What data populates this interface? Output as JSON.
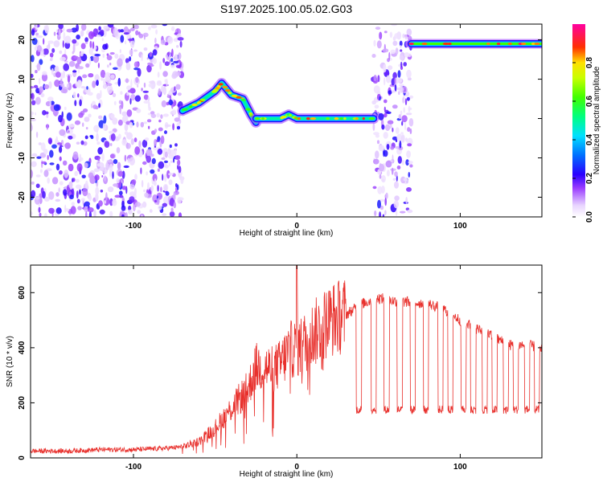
{
  "title": "S197.2025.100.05.02.G03",
  "colors": {
    "snr_line": "#e8302c",
    "frame": "#000000",
    "background": "#ffffff"
  },
  "chart_data": [
    {
      "type": "heatmap",
      "title": "S197.2025.100.05.02.G03",
      "xlabel": "Height of straight line (km)",
      "ylabel": "Frequency (Hz)",
      "xlim": [
        -163,
        150
      ],
      "ylim": [
        -25,
        24
      ],
      "x_ticks": [
        -100,
        0,
        100
      ],
      "x_tick_labels": [
        "-100",
        "0",
        "100"
      ],
      "y_ticks": [
        -20,
        -10,
        0,
        10,
        20
      ],
      "y_tick_labels": [
        "-20",
        "-10",
        "0",
        "10",
        "20"
      ],
      "colorbar": {
        "label": "Normalized spectral amplitude",
        "range": [
          0.0,
          1.0
        ],
        "ticks": [
          0.0,
          0.2,
          0.4,
          0.6,
          0.8
        ],
        "tick_labels": [
          "0.0",
          "0.2",
          "0.4",
          "0.6",
          "0.8"
        ],
        "colormap": "rainbow (white-violet-blue-cyan-green-yellow-red-magenta)"
      },
      "regions": [
        {
          "x": [
            -163,
            -70
          ],
          "description": "scattered low-amplitude noise",
          "y_range": [
            -25,
            24
          ]
        },
        {
          "x": [
            -70,
            -25
          ],
          "description": "signal ridge rising to ~9 Hz",
          "frequency_path": [
            [
              -70,
              2
            ],
            [
              -60,
              4
            ],
            [
              -50,
              7
            ],
            [
              -46,
              9
            ],
            [
              -40,
              6
            ],
            [
              -33,
              5
            ],
            [
              -28,
              1
            ],
            [
              -25,
              -1
            ]
          ]
        },
        {
          "x": [
            -25,
            47
          ],
          "description": "signal ridge near 0 Hz",
          "frequency_path": [
            [
              -25,
              0
            ],
            [
              -10,
              0
            ],
            [
              -5,
              1
            ],
            [
              0,
              0
            ],
            [
              10,
              0
            ],
            [
              30,
              0
            ],
            [
              47,
              0
            ]
          ]
        },
        {
          "x": [
            47,
            70
          ],
          "description": "scattered noise band",
          "y_range": [
            -25,
            24
          ]
        },
        {
          "x": [
            70,
            150
          ],
          "description": "strong signal near 19 Hz",
          "frequency_path": [
            [
              70,
              19
            ],
            [
              150,
              19
            ]
          ]
        }
      ]
    },
    {
      "type": "line",
      "xlabel": "Height of straight line (km)",
      "ylabel": "SNR (10 * v/v)",
      "xlim": [
        -163,
        150
      ],
      "ylim": [
        0,
        700
      ],
      "x_ticks": [
        -100,
        0,
        100
      ],
      "x_tick_labels": [
        "-100",
        "0",
        "100"
      ],
      "y_ticks": [
        0,
        200,
        400,
        600
      ],
      "y_tick_labels": [
        "0",
        "200",
        "400",
        "600"
      ],
      "series": [
        {
          "x": [
            -163,
            -140,
            -120,
            -100,
            -80,
            -70,
            -60,
            -50,
            -40,
            -30,
            -25,
            -20,
            -15,
            -10,
            -5,
            0,
            5,
            10,
            20,
            30,
            40,
            50,
            60,
            70,
            80,
            90,
            100,
            110,
            120,
            130,
            140,
            150
          ],
          "values": [
            25,
            25,
            30,
            30,
            35,
            40,
            60,
            110,
            180,
            250,
            330,
            330,
            320,
            340,
            390,
            400,
            420,
            450,
            500,
            520,
            560,
            580,
            570,
            565,
            560,
            540,
            500,
            470,
            440,
            410,
            410,
            400
          ],
          "dropouts_x": [
            38,
            47,
            55,
            63,
            71,
            79,
            88,
            94,
            102,
            108,
            115,
            121,
            128,
            134,
            141,
            147
          ],
          "dropout_level": 160,
          "peak_near_zero": [
            0,
            700
          ]
        }
      ]
    }
  ]
}
